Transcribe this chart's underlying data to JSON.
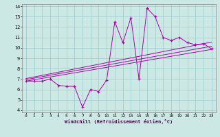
{
  "title": "",
  "xlabel": "Windchill (Refroidissement éolien,°C)",
  "bg_color": "#cce8e4",
  "line_color": "#aa00aa",
  "grid_color": "#99cccc",
  "xlim": [
    -0.5,
    23.5
  ],
  "ylim": [
    3.8,
    14.2
  ],
  "xticks": [
    0,
    1,
    2,
    3,
    4,
    5,
    6,
    7,
    8,
    9,
    10,
    11,
    12,
    13,
    14,
    15,
    16,
    17,
    18,
    19,
    20,
    21,
    22,
    23
  ],
  "yticks": [
    4,
    5,
    6,
    7,
    8,
    9,
    10,
    11,
    12,
    13,
    14
  ],
  "data_x": [
    0,
    1,
    2,
    3,
    4,
    5,
    6,
    7,
    8,
    9,
    10,
    11,
    12,
    13,
    14,
    15,
    16,
    17,
    18,
    19,
    20,
    21,
    22,
    23
  ],
  "data_y": [
    6.8,
    6.8,
    6.8,
    7.0,
    6.4,
    6.3,
    6.3,
    4.3,
    6.0,
    5.8,
    6.9,
    12.5,
    10.5,
    12.9,
    7.0,
    13.8,
    13.0,
    11.0,
    10.7,
    11.0,
    10.5,
    10.3,
    10.4,
    9.9
  ],
  "line1_x": [
    0,
    23
  ],
  "line1_y": [
    6.8,
    9.85
  ],
  "line2_x": [
    0,
    23
  ],
  "line2_y": [
    6.95,
    10.15
  ],
  "line3_x": [
    0,
    23
  ],
  "line3_y": [
    7.05,
    10.55
  ]
}
